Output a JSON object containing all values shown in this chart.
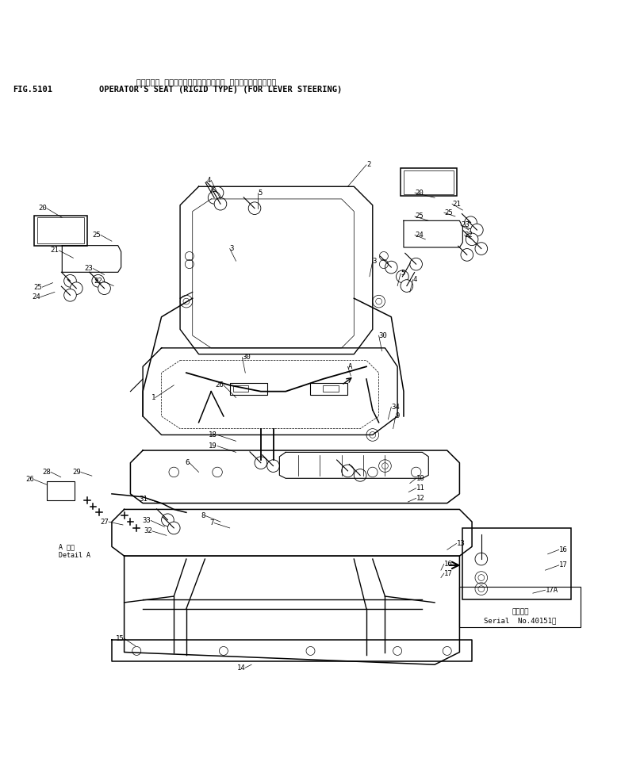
{
  "title_line1": "オペレータ シート（ゴテイキ）（レバー ステアリング・ヨウ）",
  "fig_label": "FIG.5101",
  "title_line2": "OPERATOR'S SEAT (RIGID TYPE) (FOR LEVER STEERING)",
  "serial_text": "適用号機\nSerial  No.40151～",
  "detail_label": "A 詳細\nDetail A",
  "bg_color": "#ffffff",
  "line_color": "#000000"
}
